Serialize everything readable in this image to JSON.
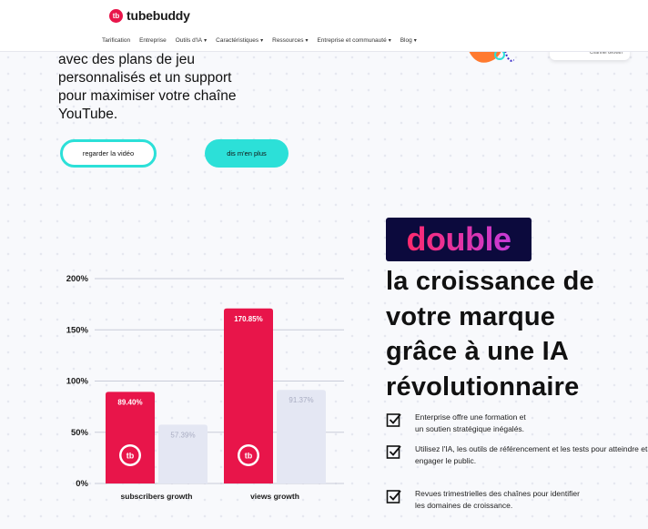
{
  "header": {
    "logo_text": "tubebuddy",
    "logo_mark": "tb",
    "nav": [
      {
        "label": "Tarification",
        "dropdown": false
      },
      {
        "label": "Entreprise",
        "dropdown": false
      },
      {
        "label": "Outils d'IA",
        "dropdown": true
      },
      {
        "label": "Caractéristiques",
        "dropdown": true
      },
      {
        "label": "Ressources",
        "dropdown": true
      },
      {
        "label": "Entreprise et communauté",
        "dropdown": true
      },
      {
        "label": "Blog",
        "dropdown": true
      }
    ]
  },
  "hero": {
    "intro_lines": [
      "avec des plans de jeu",
      "personnalisés et un support",
      "pour maximiser votre chaîne",
      "YouTube."
    ],
    "video_button": "regarder la vidéo",
    "more_button": "dis m'en plus",
    "channel_card_text": "Channel Growth"
  },
  "chart_data": {
    "type": "bar",
    "categories": [
      "subscribers growth",
      "views growth"
    ],
    "series": [
      {
        "values": [
          89.4,
          170.85
        ],
        "color": "#e8154a"
      },
      {
        "values": [
          57.39,
          91.37
        ],
        "color": "#e4e7f3"
      }
    ],
    "data_labels": [
      [
        "89.40%",
        "170.85%"
      ],
      [
        "57.39%",
        "91.37%"
      ]
    ],
    "yticks": [
      "0%",
      "50%",
      "100%",
      "150%",
      "200%"
    ],
    "ylim": [
      0,
      200
    ],
    "grid": true
  },
  "right": {
    "badge": "double",
    "headline_lines": [
      "la croissance de",
      "votre marque",
      "grâce à une IA",
      "révolutionnaire"
    ],
    "features": [
      "Enterprise offre une formation et\nun soutien stratégique inégalés.",
      "Utilisez l'IA, les outils de référencement et les tests pour atteindre et\nengager le public.",
      "Revues trimestrielles des chaînes pour identifier\nles domaines de croissance."
    ]
  },
  "colors": {
    "accent_teal": "#2ce0d8",
    "brand_red": "#e8154a",
    "badge_bg": "#0c0a3d",
    "bar_secondary": "#e4e7f3"
  },
  "icons": {
    "feature": "checkbox-checked-icon",
    "bar_badge": "tubebuddy-logo-icon"
  }
}
